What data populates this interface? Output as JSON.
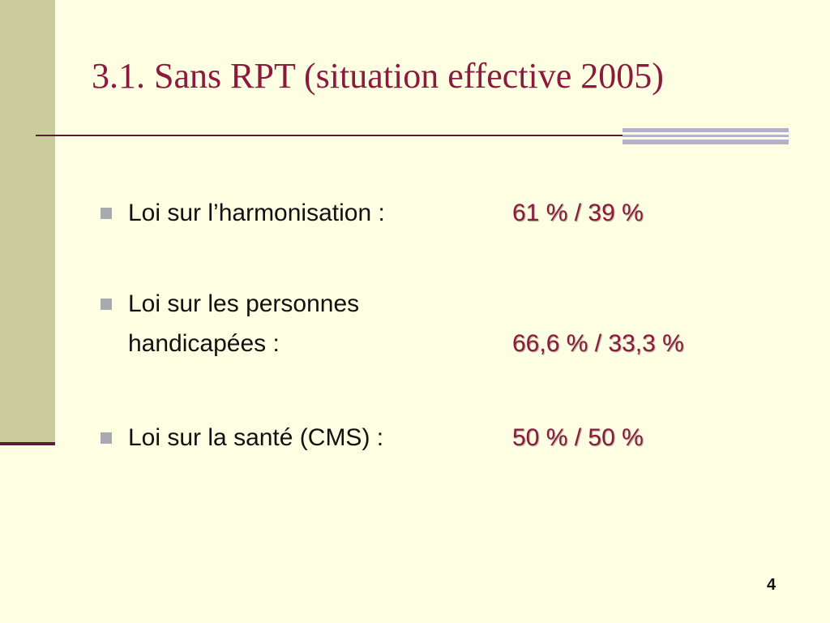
{
  "slide": {
    "title": "3.1.  Sans RPT (situation effective 2005)",
    "page_number": "4",
    "colors": {
      "background": "#fefee3",
      "sidebar": "#cbcc9e",
      "accent": "#8b1a3c",
      "rule": "#5c1b36"
    }
  },
  "items": [
    {
      "label": "Loi sur l’harmonisation :",
      "value": "61 % / 39 %"
    },
    {
      "label_line1": "Loi sur les personnes",
      "label_line2": "handicapées :",
      "value": "66,6 % / 33,3 %"
    },
    {
      "label": "Loi sur la santé (CMS) :",
      "value": "50 % / 50 %"
    }
  ]
}
